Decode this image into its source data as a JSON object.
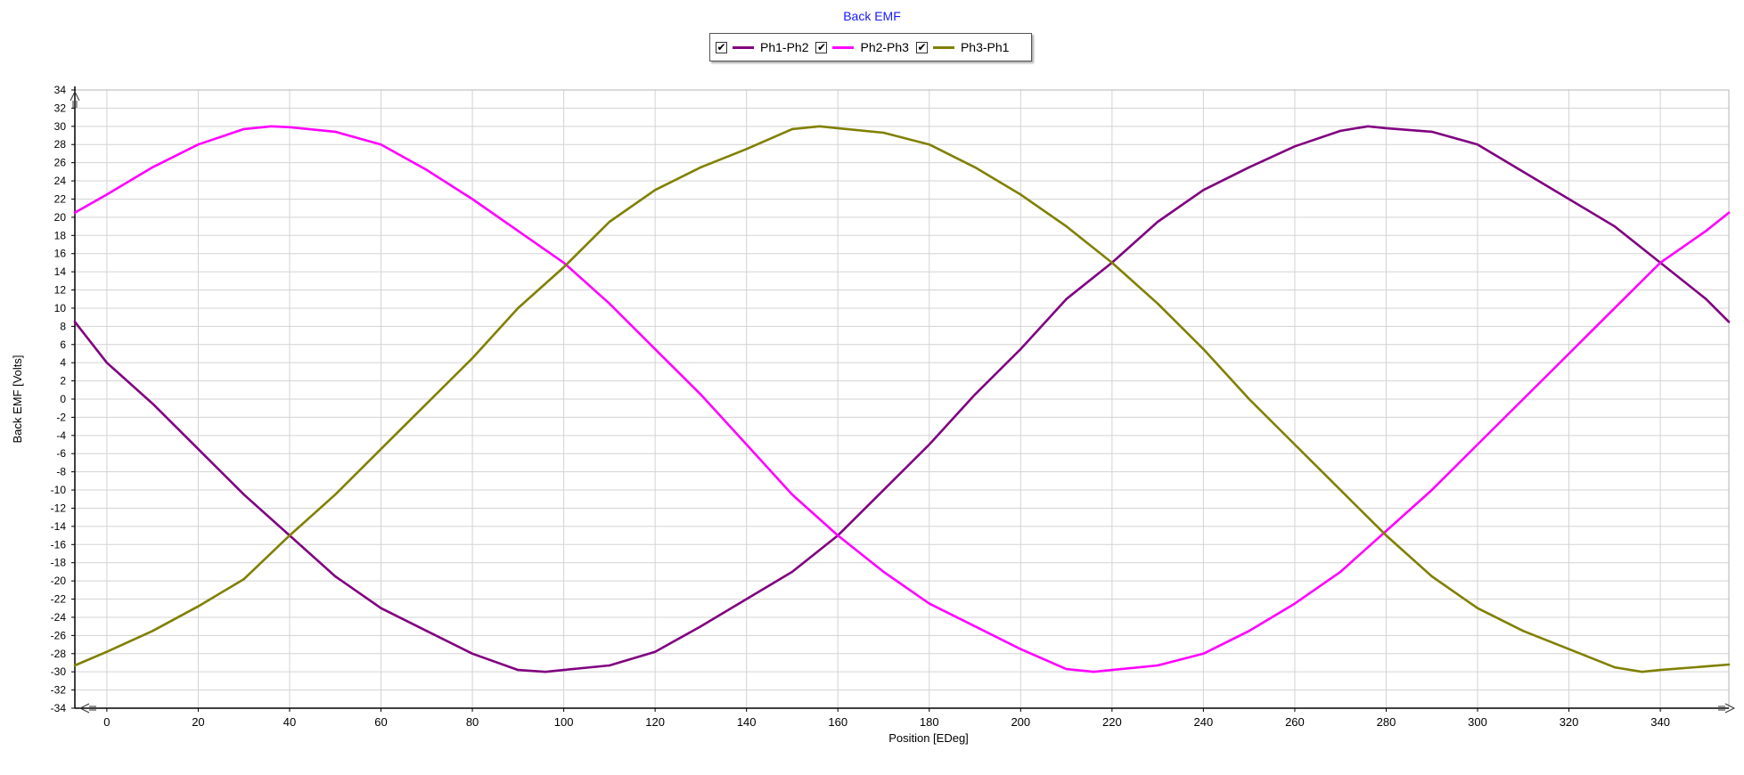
{
  "chart_data": {
    "type": "line",
    "title": "Back EMF",
    "xlabel": "Position [EDeg]",
    "ylabel": "Back EMF [Volts]",
    "xlim": [
      -7,
      355
    ],
    "ylim": [
      -34,
      34
    ],
    "x_ticks": [
      0,
      20,
      40,
      60,
      80,
      100,
      120,
      140,
      160,
      180,
      200,
      220,
      240,
      260,
      280,
      300,
      320,
      340
    ],
    "y_ticks": [
      34,
      32,
      30,
      28,
      26,
      24,
      22,
      20,
      18,
      16,
      14,
      12,
      10,
      8,
      6,
      4,
      2,
      0,
      -2,
      -4,
      -6,
      -8,
      -10,
      -12,
      -14,
      -16,
      -18,
      -20,
      -22,
      -24,
      -26,
      -28,
      -30,
      -32,
      -34
    ],
    "grid": true,
    "legend_position": "top-center",
    "series": [
      {
        "name": "Ph1-Ph2",
        "color": "#800080",
        "checked": true,
        "x": [
          -7,
          0,
          10,
          20,
          30,
          40,
          50,
          60,
          70,
          80,
          90,
          96,
          100,
          110,
          120,
          130,
          140,
          150,
          160,
          170,
          180,
          190,
          200,
          210,
          220,
          230,
          240,
          250,
          260,
          270,
          276,
          280,
          290,
          300,
          310,
          320,
          330,
          340,
          350,
          355
        ],
        "values": [
          8.5,
          4.0,
          -0.5,
          -5.5,
          -10.5,
          -15.0,
          -19.5,
          -23.0,
          -25.5,
          -28.0,
          -29.8,
          -30.0,
          -29.8,
          -29.3,
          -27.8,
          -25.0,
          -22.0,
          -19.0,
          -15.0,
          -10.0,
          -5.0,
          0.5,
          5.5,
          11.0,
          15.0,
          19.5,
          23.0,
          25.5,
          27.8,
          29.5,
          30.0,
          29.8,
          29.4,
          28.0,
          25.0,
          22.0,
          19.0,
          15.0,
          11.0,
          8.5
        ]
      },
      {
        "name": "Ph2-Ph3",
        "color": "#ff00ff",
        "checked": true,
        "x": [
          -7,
          0,
          10,
          20,
          30,
          36,
          40,
          50,
          60,
          70,
          80,
          90,
          100,
          110,
          120,
          130,
          140,
          150,
          160,
          170,
          180,
          190,
          200,
          210,
          216,
          220,
          230,
          240,
          250,
          260,
          270,
          280,
          290,
          300,
          310,
          320,
          330,
          340,
          350,
          355
        ],
        "values": [
          20.5,
          22.5,
          25.5,
          28.0,
          29.7,
          30.0,
          29.9,
          29.4,
          28.0,
          25.2,
          22.0,
          18.5,
          15.0,
          10.5,
          5.5,
          0.5,
          -5.0,
          -10.5,
          -15.0,
          -19.0,
          -22.5,
          -25.0,
          -27.5,
          -29.7,
          -30.0,
          -29.8,
          -29.3,
          -28.0,
          -25.5,
          -22.5,
          -19.0,
          -14.5,
          -10.0,
          -5.0,
          0.0,
          5.0,
          10.0,
          15.0,
          18.5,
          20.5
        ]
      },
      {
        "name": "Ph3-Ph1",
        "color": "#808000",
        "checked": true,
        "x": [
          -7,
          0,
          10,
          20,
          30,
          40,
          50,
          60,
          70,
          80,
          90,
          100,
          110,
          120,
          130,
          140,
          150,
          156,
          160,
          170,
          180,
          190,
          200,
          210,
          220,
          230,
          240,
          250,
          260,
          270,
          280,
          290,
          300,
          310,
          320,
          330,
          336,
          340,
          350,
          355
        ],
        "values": [
          -29.3,
          -27.8,
          -25.5,
          -22.8,
          -19.8,
          -15.0,
          -10.5,
          -5.5,
          -0.5,
          4.5,
          10.0,
          14.5,
          19.5,
          23.0,
          25.5,
          27.5,
          29.7,
          30.0,
          29.8,
          29.3,
          28.0,
          25.5,
          22.5,
          19.0,
          15.0,
          10.5,
          5.5,
          0.0,
          -5.0,
          -10.0,
          -15.0,
          -19.5,
          -23.0,
          -25.5,
          -27.5,
          -29.5,
          -30.0,
          -29.8,
          -29.4,
          -29.2
        ]
      }
    ]
  }
}
